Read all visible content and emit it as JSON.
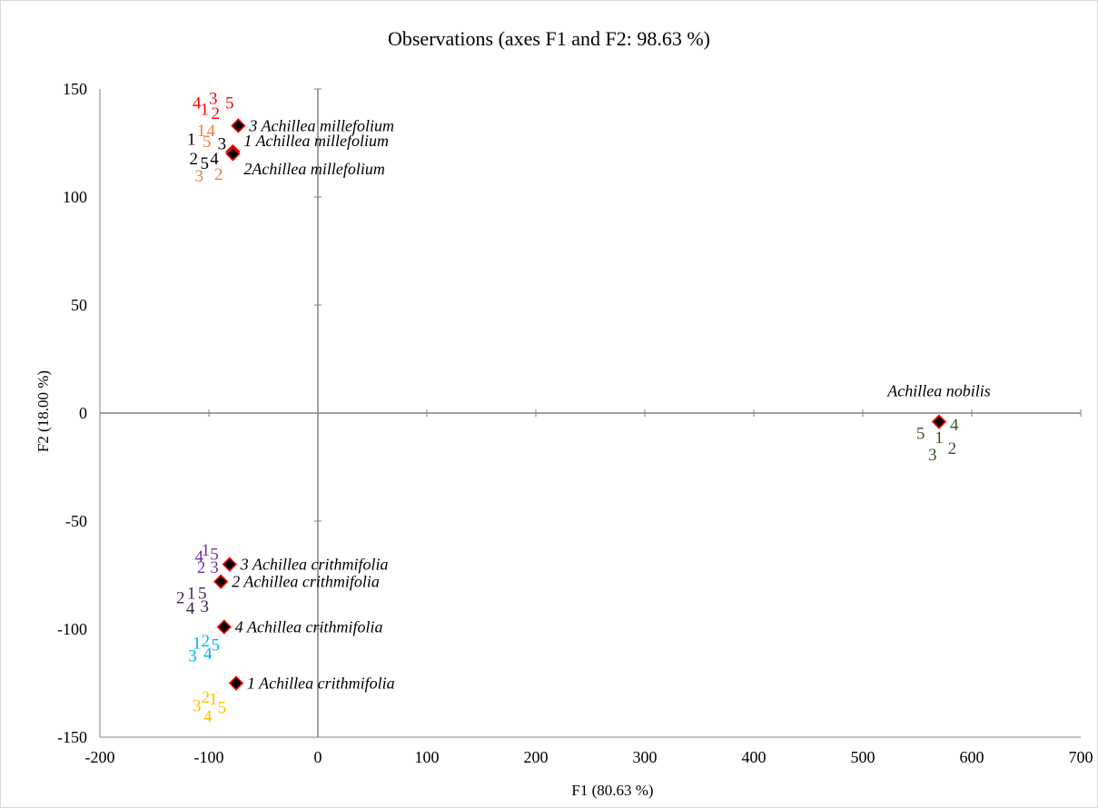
{
  "chart_data": {
    "type": "scatter",
    "title": "Observations (axes F1 and F2: 98.63 %)",
    "xlabel": "F1 (80.63 %)",
    "ylabel": "F2 (18.00 %)",
    "xlim": [
      -200,
      700
    ],
    "ylim": [
      -150,
      150
    ],
    "xticks": [
      "-200",
      "-100",
      "0",
      "100",
      "200",
      "300",
      "400",
      "500",
      "600",
      "700"
    ],
    "yticks": [
      "150",
      "100",
      "50",
      "0",
      "-50",
      "-100",
      "-150"
    ],
    "grid": false,
    "legend": "none",
    "centroids": [
      {
        "label": "3 Achillea millefolium",
        "x": -73,
        "y": 133
      },
      {
        "label": "1 Achillea millefolium",
        "x": -78,
        "y": 121
      },
      {
        "label": "2Achillea millefolium",
        "x": -78,
        "y": 120
      },
      {
        "label": "Achillea nobilis",
        "x": 570,
        "y": -4
      },
      {
        "label": "3 Achillea crithmifolia",
        "x": -81,
        "y": -70
      },
      {
        "label": "2 Achillea crithmifolia",
        "x": -89,
        "y": -78
      },
      {
        "label": "4 Achillea crithmifolia",
        "x": -86,
        "y": -99
      },
      {
        "label": "1 Achillea crithmifolia",
        "x": -75,
        "y": -125
      }
    ],
    "centroid_colors": {
      "fill": "#000000",
      "edge": "#ff0000"
    },
    "series": [
      {
        "color": "#ff0000",
        "points": [
          {
            "label": "4",
            "x": -111,
            "y": 144
          },
          {
            "label": "1",
            "x": -104,
            "y": 141
          },
          {
            "label": "3",
            "x": -96,
            "y": 146
          },
          {
            "label": "2",
            "x": -94,
            "y": 139
          },
          {
            "label": "5",
            "x": -81,
            "y": 144
          }
        ]
      },
      {
        "color": "#ed7d31",
        "points": [
          {
            "label": "1",
            "x": -107,
            "y": 131
          },
          {
            "label": "4",
            "x": -98,
            "y": 131
          },
          {
            "label": "5",
            "x": -102,
            "y": 126
          },
          {
            "label": "3",
            "x": -109,
            "y": 110
          },
          {
            "label": "2",
            "x": -91,
            "y": 111
          }
        ]
      },
      {
        "color": "#000000",
        "points": [
          {
            "label": "1",
            "x": -116,
            "y": 127
          },
          {
            "label": "3",
            "x": -88,
            "y": 125
          },
          {
            "label": "2",
            "x": -114,
            "y": 118
          },
          {
            "label": "5",
            "x": -104,
            "y": 116
          },
          {
            "label": "4",
            "x": -95,
            "y": 118
          }
        ]
      },
      {
        "color": "#375623",
        "points": [
          {
            "label": "5",
            "x": 553,
            "y": -9
          },
          {
            "label": "4",
            "x": 584,
            "y": -5
          },
          {
            "label": "1",
            "x": 570,
            "y": -11
          },
          {
            "label": "3",
            "x": 564,
            "y": -19
          },
          {
            "label": "2",
            "x": 582,
            "y": -16
          }
        ]
      },
      {
        "color": "#7030a0",
        "points": [
          {
            "label": "4",
            "x": -109,
            "y": -66
          },
          {
            "label": "1",
            "x": -103,
            "y": -63
          },
          {
            "label": "5",
            "x": -95,
            "y": -65
          },
          {
            "label": "2",
            "x": -107,
            "y": -71
          },
          {
            "label": "3",
            "x": -95,
            "y": -71
          }
        ]
      },
      {
        "color": "#3f1f4f",
        "points": [
          {
            "label": "2",
            "x": -126,
            "y": -85
          },
          {
            "label": "1",
            "x": -116,
            "y": -83
          },
          {
            "label": "5",
            "x": -106,
            "y": -83
          },
          {
            "label": "4",
            "x": -117,
            "y": -90
          },
          {
            "label": "3",
            "x": -104,
            "y": -89
          }
        ]
      },
      {
        "color": "#00b0f0",
        "points": [
          {
            "label": "1",
            "x": -111,
            "y": -106
          },
          {
            "label": "2",
            "x": -103,
            "y": -105
          },
          {
            "label": "5",
            "x": -94,
            "y": -107
          },
          {
            "label": "3",
            "x": -115,
            "y": -112
          },
          {
            "label": "4",
            "x": -101,
            "y": -111
          }
        ]
      },
      {
        "color": "#ffc000",
        "points": [
          {
            "label": "2",
            "x": -103,
            "y": -131
          },
          {
            "label": "1",
            "x": -96,
            "y": -132
          },
          {
            "label": "3",
            "x": -111,
            "y": -135
          },
          {
            "label": "5",
            "x": -88,
            "y": -136
          },
          {
            "label": "4",
            "x": -101,
            "y": -140
          }
        ]
      }
    ]
  }
}
